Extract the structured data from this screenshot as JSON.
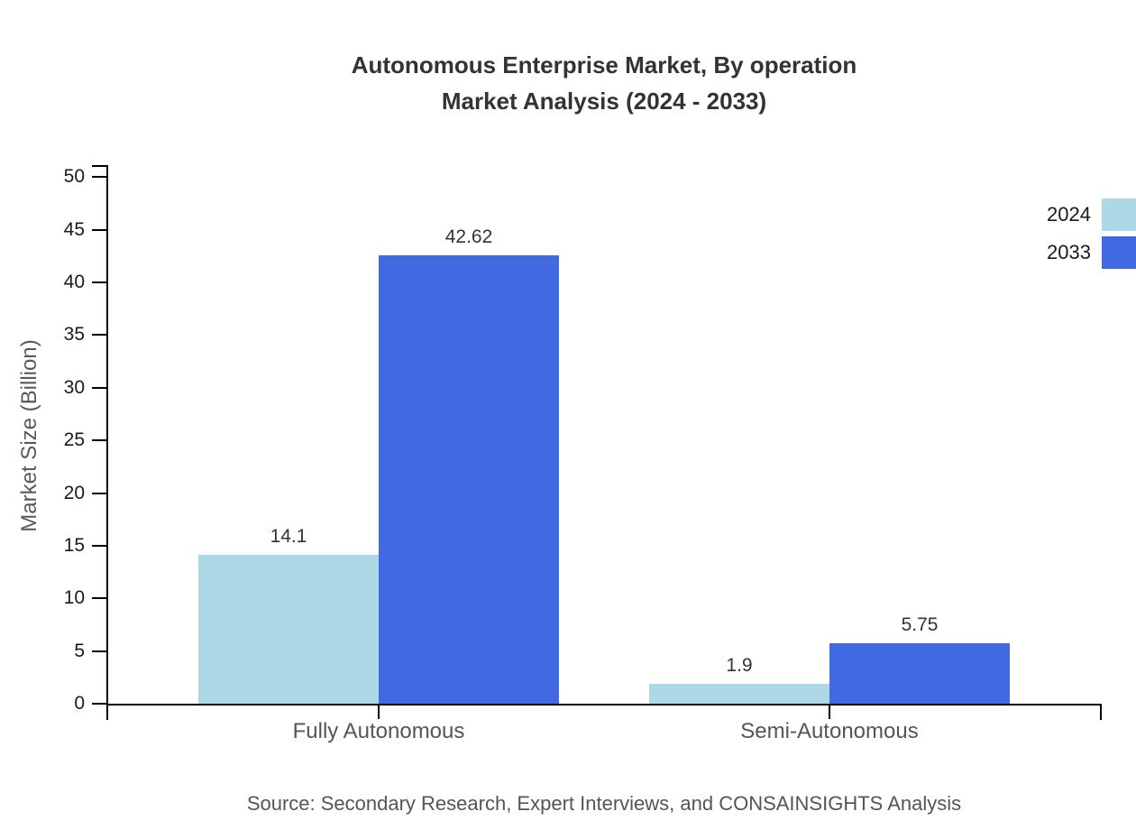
{
  "header": {
    "title_line1": "Autonomous Enterprise Market, By operation",
    "title_line2": "Market Analysis (2024 - 2033)"
  },
  "chart_data": {
    "type": "bar",
    "title": "Autonomous Enterprise Market, By operation Market Analysis (2024 - 2033)",
    "categories": [
      "Fully Autonomous",
      "Semi-Autonomous"
    ],
    "series": [
      {
        "name": "2024",
        "color": "#ADD8E6",
        "values": [
          14.1,
          1.9
        ],
        "value_labels": [
          "14.1",
          "1.9"
        ]
      },
      {
        "name": "2033",
        "color": "#4169E1",
        "values": [
          42.62,
          5.75
        ],
        "value_labels": [
          "42.62",
          "5.75"
        ]
      }
    ],
    "xlabel": "",
    "ylabel": "Market Size (Billion)",
    "ylim": [
      0,
      51.144
    ],
    "yticks": [
      0,
      5,
      10,
      15,
      20,
      25,
      30,
      35,
      40,
      45,
      50
    ],
    "grid": false,
    "legend_position": "top-right",
    "colors": {
      "axis": "#000000",
      "tick_labels": "#1a1a1a",
      "category_labels": "#555555",
      "value_labels": "#333333",
      "title": "#333333",
      "source": "#555555"
    }
  },
  "footer": {
    "source": "Source: Secondary Research, Expert Interviews, and CONSAINSIGHTS Analysis"
  }
}
